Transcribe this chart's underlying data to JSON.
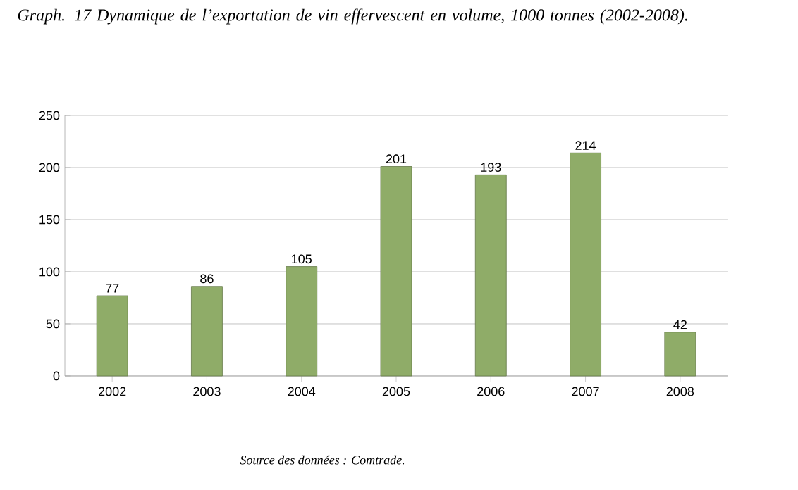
{
  "chart_data": {
    "type": "bar",
    "title": "Graph. 17 Dynamique de l’exportation de vin effervescent en volume, 1000 tonnes (2002-2008).",
    "categories": [
      "2002",
      "2003",
      "2004",
      "2005",
      "2006",
      "2007",
      "2008"
    ],
    "values": [
      77,
      86,
      105,
      201,
      193,
      214,
      42
    ],
    "color": "#8fac68",
    "ylim": [
      0,
      250
    ],
    "yticks": [
      0,
      50,
      100,
      150,
      200,
      250
    ],
    "grid": "y",
    "data_labels": true,
    "annotations": [
      "Source des données : Comtrade."
    ]
  }
}
